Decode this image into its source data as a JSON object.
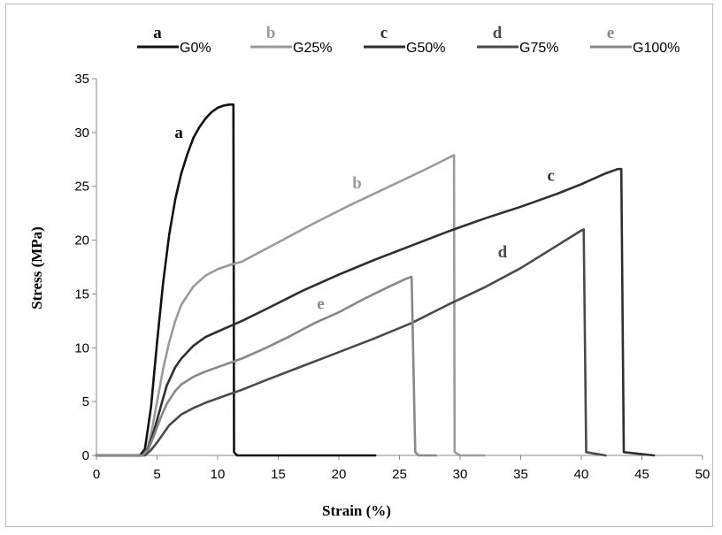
{
  "chart_data": {
    "type": "line",
    "title": "",
    "xlabel": "Strain (%)",
    "ylabel": "Stress (MPa)",
    "xlim": [
      0,
      50
    ],
    "ylim": [
      0,
      35
    ],
    "xticks": [
      0,
      5,
      10,
      15,
      20,
      25,
      30,
      35,
      40,
      45,
      50
    ],
    "yticks": [
      0,
      5,
      10,
      15,
      20,
      25,
      30,
      35
    ],
    "grid": false,
    "legend_placement": "top",
    "series": [
      {
        "letter": "a",
        "name": "G0%",
        "color": "#111111",
        "x": [
          0,
          3.6,
          4.0,
          4.5,
          5.0,
          5.5,
          6.0,
          6.5,
          7.0,
          7.5,
          8.0,
          8.5,
          9.0,
          9.5,
          10.0,
          10.5,
          11.0,
          11.3,
          11.35,
          11.6,
          23.0
        ],
        "y": [
          0,
          0,
          0.6,
          4.5,
          10.5,
          16.0,
          20.5,
          23.8,
          26.2,
          28.0,
          29.5,
          30.5,
          31.3,
          31.9,
          32.3,
          32.5,
          32.6,
          32.6,
          0.3,
          0,
          0
        ]
      },
      {
        "letter": "b",
        "name": "G25%",
        "color": "#9a9a9a",
        "x": [
          0,
          3.8,
          4.2,
          4.6,
          5.0,
          5.5,
          6.0,
          6.5,
          7.0,
          8.0,
          9.0,
          10.0,
          11.0,
          12.0,
          15.0,
          18.0,
          21.0,
          24.0,
          27.0,
          29.5,
          29.55,
          30.0,
          32.0
        ],
        "y": [
          0,
          0,
          0.6,
          2.5,
          5.0,
          8.0,
          10.5,
          12.5,
          14.0,
          15.7,
          16.7,
          17.3,
          17.7,
          18.0,
          19.8,
          21.6,
          23.3,
          24.9,
          26.5,
          27.9,
          0.3,
          0,
          0
        ]
      },
      {
        "letter": "c",
        "name": "G50%",
        "color": "#2f2f2f",
        "x": [
          0,
          3.8,
          4.3,
          4.8,
          5.3,
          5.8,
          6.5,
          7.0,
          8.0,
          9.0,
          10.0,
          11.0,
          12.0,
          14.0,
          17.0,
          20.0,
          23.0,
          26.0,
          29.0,
          32.0,
          35.0,
          38.0,
          40.0,
          42.0,
          43.0,
          43.3,
          43.5,
          46.0
        ],
        "y": [
          0,
          0,
          0.7,
          2.5,
          4.5,
          6.5,
          8.2,
          9.0,
          10.2,
          11.0,
          11.5,
          12.0,
          12.5,
          13.6,
          15.3,
          16.8,
          18.2,
          19.5,
          20.8,
          22.0,
          23.1,
          24.3,
          25.2,
          26.2,
          26.6,
          26.6,
          0.3,
          0
        ]
      },
      {
        "letter": "d",
        "name": "G75%",
        "color": "#4a4a4a",
        "x": [
          0,
          4.0,
          4.5,
          5.0,
          5.5,
          6.0,
          7.0,
          8.0,
          9.0,
          10.0,
          11.0,
          12.0,
          14.0,
          17.0,
          20.0,
          23.0,
          26.0,
          29.0,
          32.0,
          35.0,
          38.0,
          40.0,
          40.2,
          40.4,
          42.0
        ],
        "y": [
          0,
          0,
          0.5,
          1.2,
          2.0,
          2.8,
          3.8,
          4.4,
          4.9,
          5.3,
          5.7,
          6.1,
          7.0,
          8.3,
          9.6,
          10.9,
          12.3,
          14.0,
          15.6,
          17.4,
          19.5,
          20.9,
          21.0,
          0.3,
          0
        ]
      },
      {
        "letter": "e",
        "name": "G100%",
        "color": "#888888",
        "x": [
          0,
          3.8,
          4.3,
          4.8,
          5.3,
          5.8,
          6.5,
          7.0,
          8.0,
          9.0,
          10.0,
          11.0,
          12.0,
          14.0,
          16.0,
          18.0,
          20.0,
          22.0,
          24.0,
          25.5,
          26.0,
          26.3,
          26.6,
          28.0
        ],
        "y": [
          0,
          0,
          0.6,
          2.0,
          3.5,
          4.8,
          6.0,
          6.6,
          7.3,
          7.8,
          8.2,
          8.6,
          9.0,
          10.0,
          11.1,
          12.3,
          13.3,
          14.5,
          15.6,
          16.4,
          16.6,
          0.3,
          0,
          0
        ]
      }
    ],
    "curve_labels": [
      {
        "text": "a",
        "x": 6.8,
        "y": 29.5,
        "color": "#111111"
      },
      {
        "text": "b",
        "x": 21.5,
        "y": 24.8,
        "color": "#9a9a9a"
      },
      {
        "text": "c",
        "x": 37.5,
        "y": 25.5,
        "color": "#2f2f2f"
      },
      {
        "text": "d",
        "x": 33.5,
        "y": 18.4,
        "color": "#4a4a4a"
      },
      {
        "text": "e",
        "x": 18.5,
        "y": 13.6,
        "color": "#888888"
      }
    ]
  }
}
